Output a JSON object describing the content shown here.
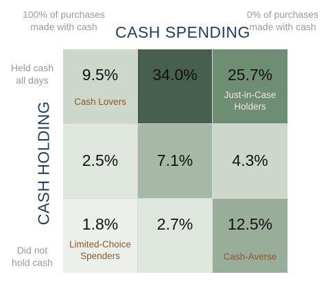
{
  "labels": {
    "top_left": "100% of purchases made with cash",
    "top_right": "0% of purchases made with cash",
    "horizontal_title": "CASH SPENDING",
    "vertical_title": "CASH HOLDING",
    "held_all_days": "Held cash all days",
    "did_not_hold": "Did not hold cash"
  },
  "cells": [
    {
      "value": "9.5%",
      "tag": "Cash Lovers",
      "color": "#cdd8cd"
    },
    {
      "value": "34.0%",
      "tag": "",
      "color": "#47604e"
    },
    {
      "value": "25.7%",
      "tag": "Just-in-Case Holders",
      "color": "#6e8e73"
    },
    {
      "value": "2.5%",
      "tag": "",
      "color": "#dee6de"
    },
    {
      "value": "7.1%",
      "tag": "",
      "color": "#a6b9a7"
    },
    {
      "value": "4.3%",
      "tag": "",
      "color": "#cdd8cd"
    },
    {
      "value": "1.8%",
      "tag": "Limited-Choice Spenders",
      "color": "#ebf0eb"
    },
    {
      "value": "2.7%",
      "tag": "",
      "color": "#dee6de"
    },
    {
      "value": "12.5%",
      "tag": "Cash-Averse",
      "color": "#98ad9a"
    }
  ]
}
